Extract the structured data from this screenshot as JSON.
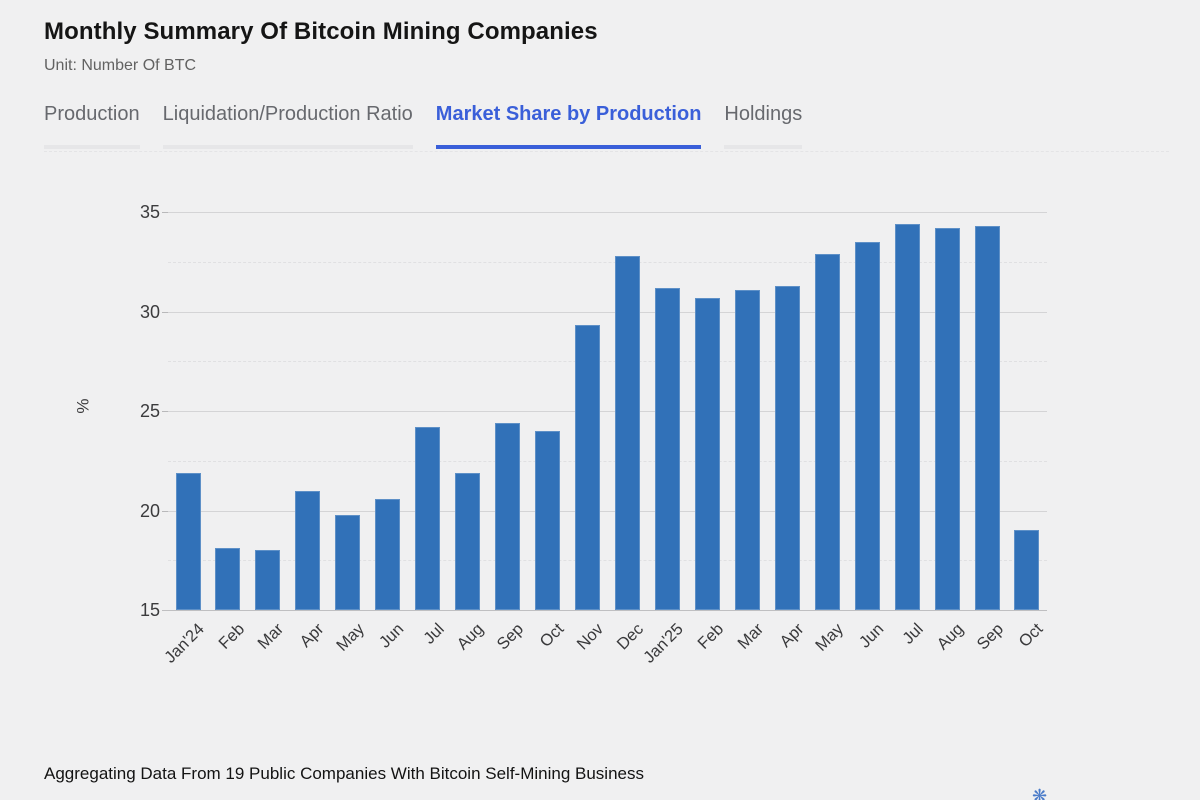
{
  "page": {
    "title": "Monthly Summary Of Bitcoin Mining Companies",
    "subtitle": "Unit: Number Of BTC",
    "footer_note": "Aggregating Data From 19 Public Companies With Bitcoin Self-Mining Business"
  },
  "tabs": [
    {
      "label": "Production",
      "active": false
    },
    {
      "label": "Liquidation/Production Ratio",
      "active": false
    },
    {
      "label": "Market Share by Production",
      "active": true
    },
    {
      "label": "Holdings",
      "active": false
    }
  ],
  "colors": {
    "background": "#F0F0F1",
    "tab_active": "#3A5FD9",
    "bar": "#3171B8",
    "gridline_major": "#D4D4D6",
    "gridline_minor": "#E0E0E2"
  },
  "watermark_icon": "❋",
  "chart_data": {
    "type": "bar",
    "title": "Market Share by Production",
    "xlabel": "",
    "ylabel": "%",
    "ylim": [
      15,
      35
    ],
    "y_major_ticks": [
      15,
      20,
      25,
      30,
      35
    ],
    "y_minor_ticks": [
      17.5,
      22.5,
      27.5,
      32.5
    ],
    "grid": true,
    "legend_position": "none",
    "categories": [
      "Jan'24",
      "Feb",
      "Mar",
      "Apr",
      "May",
      "Jun",
      "Jul",
      "Aug",
      "Sep",
      "Oct",
      "Nov",
      "Dec",
      "Jan'25",
      "Feb",
      "Mar",
      "Apr",
      "May",
      "Jun",
      "Jul",
      "Aug",
      "Sep",
      "Oct"
    ],
    "values": [
      21.9,
      18.1,
      18.0,
      21.0,
      19.8,
      20.6,
      24.2,
      21.9,
      24.4,
      24.0,
      29.3,
      32.8,
      31.2,
      30.7,
      31.1,
      31.3,
      32.9,
      33.5,
      34.4,
      34.2,
      34.3,
      19.0
    ]
  }
}
